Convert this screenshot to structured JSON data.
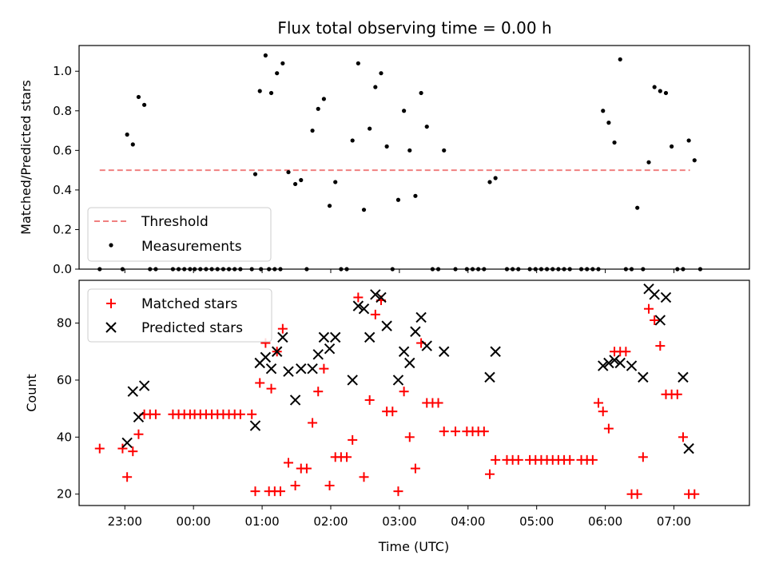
{
  "chart_data": [
    {
      "type": "scatter",
      "title": "Flux total observing time = 0.00 h",
      "xlabel": "",
      "ylabel": "Matched/Predicted stars",
      "ylim": [
        0,
        1.13
      ],
      "xlim": [
        "22:20",
        "08:06"
      ],
      "x_tick_labels": [
        "23:00",
        "00:00",
        "01:00",
        "02:00",
        "03:00",
        "04:00",
        "05:00",
        "06:00",
        "07:00"
      ],
      "y_tick_labels": [
        "0.0",
        "0.2",
        "0.4",
        "0.6",
        "0.8",
        "1.0"
      ],
      "y_ticks": [
        0,
        0.2,
        0.4,
        0.6,
        0.8,
        1.0
      ],
      "legend_position": "lower-left",
      "threshold": {
        "name": "Threshold",
        "color": "#f08080",
        "y": 0.5,
        "x_start": "22:38",
        "x_end": "07:14"
      },
      "series": [
        {
          "name": "Measurements",
          "color": "#000000",
          "marker": "dot",
          "points": [
            [
              "22:38",
              0
            ],
            [
              "22:58",
              0
            ],
            [
              "23:02",
              0.68
            ],
            [
              "23:07",
              0.63
            ],
            [
              "23:12",
              0.87
            ],
            [
              "23:17",
              0.83
            ],
            [
              "23:22",
              0
            ],
            [
              "23:27",
              0
            ],
            [
              "23:42",
              0
            ],
            [
              "23:47",
              0
            ],
            [
              "23:52",
              0
            ],
            [
              "23:57",
              0
            ],
            [
              "00:01",
              0
            ],
            [
              "00:06",
              0
            ],
            [
              "00:11",
              0
            ],
            [
              "00:16",
              0
            ],
            [
              "00:21",
              0
            ],
            [
              "00:26",
              0
            ],
            [
              "00:31",
              0
            ],
            [
              "00:36",
              0
            ],
            [
              "00:41",
              0
            ],
            [
              "00:51",
              0
            ],
            [
              "00:54",
              0.48
            ],
            [
              "00:59",
              0
            ],
            [
              "01:06",
              0
            ],
            [
              "01:11",
              0
            ],
            [
              "01:16",
              0
            ],
            [
              "00:58",
              0.9
            ],
            [
              "01:03",
              1.08
            ],
            [
              "01:08",
              0.89
            ],
            [
              "01:13",
              0.99
            ],
            [
              "01:18",
              1.04
            ],
            [
              "01:23",
              0.49
            ],
            [
              "01:29",
              0.43
            ],
            [
              "01:34",
              0.45
            ],
            [
              "01:39",
              0
            ],
            [
              "01:44",
              0.7
            ],
            [
              "01:49",
              0.81
            ],
            [
              "01:54",
              0.86
            ],
            [
              "01:59",
              0.32
            ],
            [
              "02:04",
              0.44
            ],
            [
              "02:09",
              0
            ],
            [
              "02:14",
              0
            ],
            [
              "02:19",
              0.65
            ],
            [
              "02:24",
              1.04
            ],
            [
              "02:29",
              0.3
            ],
            [
              "02:34",
              0.71
            ],
            [
              "02:39",
              0.92
            ],
            [
              "02:44",
              0.99
            ],
            [
              "02:49",
              0.62
            ],
            [
              "02:54",
              0
            ],
            [
              "02:59",
              0.35
            ],
            [
              "03:04",
              0.8
            ],
            [
              "03:09",
              0.6
            ],
            [
              "03:14",
              0.37
            ],
            [
              "03:19",
              0.89
            ],
            [
              "03:24",
              0.72
            ],
            [
              "03:29",
              0
            ],
            [
              "03:34",
              0
            ],
            [
              "03:39",
              0.6
            ],
            [
              "03:49",
              0
            ],
            [
              "03:59",
              0
            ],
            [
              "04:04",
              0
            ],
            [
              "04:09",
              0
            ],
            [
              "04:14",
              0
            ],
            [
              "04:19",
              0.44
            ],
            [
              "04:24",
              0.46
            ],
            [
              "04:34",
              0
            ],
            [
              "04:39",
              0
            ],
            [
              "04:44",
              0
            ],
            [
              "04:54",
              0
            ],
            [
              "04:59",
              0
            ],
            [
              "05:04",
              0
            ],
            [
              "05:09",
              0
            ],
            [
              "05:14",
              0
            ],
            [
              "05:19",
              0
            ],
            [
              "05:24",
              0
            ],
            [
              "05:29",
              0
            ],
            [
              "05:39",
              0
            ],
            [
              "05:44",
              0
            ],
            [
              "05:49",
              0
            ],
            [
              "05:54",
              0
            ],
            [
              "05:58",
              0.8
            ],
            [
              "06:03",
              0.74
            ],
            [
              "06:08",
              0.64
            ],
            [
              "06:13",
              1.06
            ],
            [
              "06:18",
              0
            ],
            [
              "06:23",
              0
            ],
            [
              "06:28",
              0.31
            ],
            [
              "06:33",
              0
            ],
            [
              "06:38",
              0.54
            ],
            [
              "06:43",
              0.92
            ],
            [
              "06:48",
              0.9
            ],
            [
              "06:53",
              0.89
            ],
            [
              "06:58",
              0.62
            ],
            [
              "07:03",
              0
            ],
            [
              "07:08",
              0
            ],
            [
              "07:13",
              0.65
            ],
            [
              "07:18",
              0.55
            ],
            [
              "07:23",
              0
            ]
          ]
        }
      ]
    },
    {
      "type": "scatter",
      "title": "",
      "xlabel": "Time (UTC)",
      "ylabel": "Count",
      "ylim": [
        16,
        95
      ],
      "xlim": [
        "22:20",
        "08:06"
      ],
      "x_tick_labels": [
        "23:00",
        "00:00",
        "01:00",
        "02:00",
        "03:00",
        "04:00",
        "05:00",
        "06:00",
        "07:00"
      ],
      "y_tick_labels": [
        "20",
        "40",
        "60",
        "80"
      ],
      "y_ticks": [
        20,
        40,
        60,
        80
      ],
      "legend_position": "top-left",
      "series": [
        {
          "name": "Matched stars",
          "color": "#ff0000",
          "marker": "plus",
          "points": [
            [
              "22:38",
              36
            ],
            [
              "22:58",
              36
            ],
            [
              "23:02",
              26
            ],
            [
              "23:07",
              35
            ],
            [
              "23:12",
              41
            ],
            [
              "23:17",
              48
            ],
            [
              "23:22",
              48
            ],
            [
              "23:27",
              48
            ],
            [
              "23:42",
              48
            ],
            [
              "23:47",
              48
            ],
            [
              "23:52",
              48
            ],
            [
              "23:57",
              48
            ],
            [
              "00:01",
              48
            ],
            [
              "00:06",
              48
            ],
            [
              "00:11",
              48
            ],
            [
              "00:16",
              48
            ],
            [
              "00:21",
              48
            ],
            [
              "00:26",
              48
            ],
            [
              "00:31",
              48
            ],
            [
              "00:36",
              48
            ],
            [
              "00:41",
              48
            ],
            [
              "00:51",
              48
            ],
            [
              "00:54",
              21
            ],
            [
              "01:06",
              21
            ],
            [
              "01:11",
              21
            ],
            [
              "01:16",
              21
            ],
            [
              "00:58",
              59
            ],
            [
              "01:03",
              73
            ],
            [
              "01:08",
              57
            ],
            [
              "01:13",
              70
            ],
            [
              "01:18",
              78
            ],
            [
              "01:23",
              31
            ],
            [
              "01:29",
              23
            ],
            [
              "01:34",
              29
            ],
            [
              "01:39",
              29
            ],
            [
              "01:44",
              45
            ],
            [
              "01:49",
              56
            ],
            [
              "01:54",
              64
            ],
            [
              "01:59",
              23
            ],
            [
              "02:04",
              33
            ],
            [
              "02:09",
              33
            ],
            [
              "02:14",
              33
            ],
            [
              "02:19",
              39
            ],
            [
              "02:24",
              89
            ],
            [
              "02:29",
              26
            ],
            [
              "02:34",
              53
            ],
            [
              "02:39",
              83
            ],
            [
              "02:44",
              88
            ],
            [
              "02:49",
              49
            ],
            [
              "02:54",
              49
            ],
            [
              "02:59",
              21
            ],
            [
              "03:04",
              56
            ],
            [
              "03:09",
              40
            ],
            [
              "03:14",
              29
            ],
            [
              "03:19",
              73
            ],
            [
              "03:24",
              52
            ],
            [
              "03:29",
              52
            ],
            [
              "03:34",
              52
            ],
            [
              "03:39",
              42
            ],
            [
              "03:49",
              42
            ],
            [
              "03:59",
              42
            ],
            [
              "04:04",
              42
            ],
            [
              "04:09",
              42
            ],
            [
              "04:14",
              42
            ],
            [
              "04:19",
              27
            ],
            [
              "04:24",
              32
            ],
            [
              "04:34",
              32
            ],
            [
              "04:39",
              32
            ],
            [
              "04:44",
              32
            ],
            [
              "04:54",
              32
            ],
            [
              "04:59",
              32
            ],
            [
              "05:04",
              32
            ],
            [
              "05:09",
              32
            ],
            [
              "05:14",
              32
            ],
            [
              "05:19",
              32
            ],
            [
              "05:24",
              32
            ],
            [
              "05:29",
              32
            ],
            [
              "05:39",
              32
            ],
            [
              "05:44",
              32
            ],
            [
              "05:49",
              32
            ],
            [
              "05:54",
              52
            ],
            [
              "05:58",
              49
            ],
            [
              "06:03",
              43
            ],
            [
              "06:08",
              70
            ],
            [
              "06:13",
              70
            ],
            [
              "06:18",
              70
            ],
            [
              "06:23",
              20
            ],
            [
              "06:28",
              20
            ],
            [
              "06:33",
              33
            ],
            [
              "06:38",
              85
            ],
            [
              "06:43",
              81
            ],
            [
              "06:48",
              72
            ],
            [
              "06:53",
              55
            ],
            [
              "06:58",
              55
            ],
            [
              "07:03",
              55
            ],
            [
              "07:08",
              40
            ],
            [
              "07:13",
              20
            ],
            [
              "07:18",
              20
            ]
          ]
        },
        {
          "name": "Predicted stars",
          "color": "#000000",
          "marker": "x",
          "points": [
            [
              "23:02",
              38
            ],
            [
              "23:07",
              56
            ],
            [
              "23:12",
              47
            ],
            [
              "23:17",
              58
            ],
            [
              "00:54",
              44
            ],
            [
              "00:58",
              66
            ],
            [
              "01:03",
              68
            ],
            [
              "01:08",
              64
            ],
            [
              "01:13",
              70
            ],
            [
              "01:18",
              75
            ],
            [
              "01:23",
              63
            ],
            [
              "01:29",
              53
            ],
            [
              "01:34",
              64
            ],
            [
              "01:44",
              64
            ],
            [
              "01:49",
              69
            ],
            [
              "01:54",
              75
            ],
            [
              "01:59",
              71
            ],
            [
              "02:04",
              75
            ],
            [
              "02:19",
              60
            ],
            [
              "02:24",
              86
            ],
            [
              "02:29",
              85
            ],
            [
              "02:34",
              75
            ],
            [
              "02:39",
              90
            ],
            [
              "02:44",
              89
            ],
            [
              "02:49",
              79
            ],
            [
              "02:59",
              60
            ],
            [
              "03:04",
              70
            ],
            [
              "03:09",
              66
            ],
            [
              "03:14",
              77
            ],
            [
              "03:19",
              82
            ],
            [
              "03:24",
              72
            ],
            [
              "03:39",
              70
            ],
            [
              "04:19",
              61
            ],
            [
              "04:24",
              70
            ],
            [
              "05:58",
              65
            ],
            [
              "06:03",
              66
            ],
            [
              "06:08",
              67
            ],
            [
              "06:13",
              66
            ],
            [
              "06:23",
              65
            ],
            [
              "06:33",
              61
            ],
            [
              "06:38",
              92
            ],
            [
              "06:43",
              90
            ],
            [
              "06:48",
              81
            ],
            [
              "06:53",
              89
            ],
            [
              "07:08",
              61
            ],
            [
              "07:13",
              36
            ]
          ]
        }
      ]
    }
  ]
}
